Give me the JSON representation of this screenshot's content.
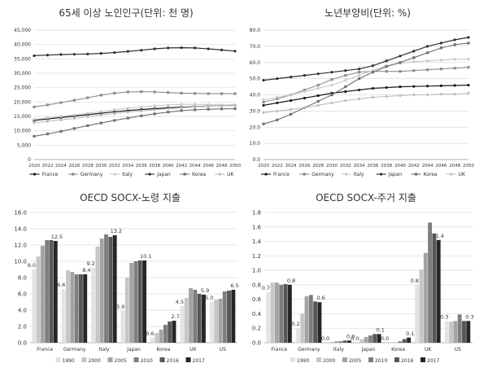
{
  "colors": {
    "France": "#1a1a1a",
    "Germany": "#8c8c8c",
    "Italy": "#c8c8c8",
    "Japan": "#2e2e2e",
    "Korea": "#707070",
    "UK": "#bdbdbd",
    "bar1990": "#e3e3e3",
    "bar2000": "#c6c6c6",
    "bar2005": "#a3a3a3",
    "bar2010": "#7e7e7e",
    "bar2016": "#575757",
    "bar2017": "#262626",
    "grid": "#dcdcdc",
    "axis": "#9a9a9a",
    "text": "#333333"
  },
  "chart_data": [
    {
      "id": "elderly",
      "type": "line",
      "title": "65세 이상 노인인구(단위: 천 명)",
      "ylim": [
        0,
        45000
      ],
      "yticks": [
        "0",
        "5,000",
        "10,000",
        "15,000",
        "20,000",
        "25,000",
        "30,000",
        "35,000",
        "40,000",
        "45,000"
      ],
      "x": [
        "2020",
        "2022",
        "2024",
        "2026",
        "2028",
        "2030",
        "2032",
        "2034",
        "2036",
        "2038",
        "2040",
        "2042",
        "2044",
        "2046",
        "2048",
        "2050"
      ],
      "series": [
        {
          "name": "France",
          "values": [
            13600,
            14100,
            14600,
            15100,
            15600,
            16100,
            16600,
            17000,
            17400,
            17700,
            18000,
            18200,
            18400,
            18600,
            18800,
            18900
          ]
        },
        {
          "name": "Germany",
          "values": [
            18300,
            19000,
            19800,
            20600,
            21500,
            22400,
            23100,
            23500,
            23600,
            23500,
            23300,
            23100,
            23000,
            22900,
            22900,
            22900
          ]
        },
        {
          "name": "Italy",
          "values": [
            14000,
            14500,
            15000,
            15500,
            16100,
            16700,
            17300,
            17800,
            18300,
            18700,
            19000,
            19200,
            19200,
            19100,
            19000,
            19000
          ]
        },
        {
          "name": "Japan",
          "values": [
            36100,
            36300,
            36500,
            36600,
            36700,
            36900,
            37200,
            37600,
            38000,
            38500,
            38800,
            38900,
            38800,
            38500,
            38100,
            37700
          ]
        },
        {
          "name": "Korea",
          "values": [
            8100,
            8900,
            9800,
            10800,
            11800,
            12700,
            13600,
            14400,
            15200,
            15900,
            16500,
            17000,
            17300,
            17500,
            17600,
            17700
          ]
        },
        {
          "name": "UK",
          "values": [
            12800,
            13300,
            13800,
            14300,
            14900,
            15500,
            16000,
            16500,
            16900,
            17300,
            17700,
            18000,
            18300,
            18600,
            18800,
            19000
          ]
        }
      ]
    },
    {
      "id": "dependency",
      "type": "line",
      "title": "노년부양비(단위: %)",
      "ylim": [
        0,
        80
      ],
      "yticks": [
        "0.0",
        "10.0",
        "20.0",
        "30.0",
        "40.0",
        "50.0",
        "60.0",
        "70.0",
        "80.0"
      ],
      "x": [
        "2020",
        "2022",
        "2024",
        "2026",
        "2028",
        "2030",
        "2032",
        "2034",
        "2036",
        "2038",
        "2040",
        "2042",
        "2044",
        "2046",
        "2048",
        "2050"
      ],
      "series": [
        {
          "name": "France",
          "values": [
            33.5,
            35,
            36.5,
            38,
            39.5,
            41,
            42,
            43,
            44,
            44.5,
            45,
            45.2,
            45.4,
            45.6,
            45.8,
            46
          ]
        },
        {
          "name": "Germany",
          "values": [
            35.5,
            37.5,
            40,
            43,
            46,
            49.5,
            52,
            54,
            54.5,
            54.5,
            54.5,
            55,
            55.5,
            56,
            56.5,
            57
          ]
        },
        {
          "name": "Italy",
          "values": [
            37,
            38.5,
            40,
            42,
            44,
            46,
            49,
            52,
            55,
            58,
            59.5,
            60.5,
            61,
            61.5,
            62,
            62
          ]
        },
        {
          "name": "Japan",
          "values": [
            49,
            50,
            51,
            52,
            53,
            54,
            55,
            56,
            58,
            61,
            64,
            67,
            70,
            72,
            74,
            75.5
          ]
        },
        {
          "name": "Korea",
          "values": [
            22,
            24.5,
            28,
            32,
            36,
            40,
            45,
            50,
            54,
            57.5,
            60,
            63,
            66,
            69,
            71,
            72
          ]
        },
        {
          "name": "UK",
          "values": [
            29,
            30,
            31,
            32,
            33.5,
            35,
            36.5,
            37.5,
            38.5,
            39,
            39.5,
            40,
            40,
            40.5,
            40.5,
            41
          ]
        }
      ]
    },
    {
      "id": "socx_old",
      "type": "bar",
      "title": "OECD SOCX-노령 지출",
      "ylim": [
        0,
        16
      ],
      "yticks": [
        "0.0",
        "2.0",
        "4.0",
        "6.0",
        "8.0",
        "10.0",
        "12.0",
        "14.0",
        "16.0"
      ],
      "categories": [
        "France",
        "Germany",
        "Italy",
        "Japan",
        "Korea",
        "UK",
        "US"
      ],
      "series": [
        {
          "name": "1990",
          "values": [
            9.0,
            6.6,
            9.2,
            3.9,
            0.6,
            4.5,
            5.0
          ]
        },
        {
          "name": "2000",
          "values": [
            10.6,
            8.9,
            11.8,
            8.0,
            1.2,
            5.5,
            5.3
          ]
        },
        {
          "name": "2005",
          "values": [
            11.9,
            8.7,
            12.8,
            9.8,
            1.6,
            6.7,
            5.4
          ]
        },
        {
          "name": "2010",
          "values": [
            12.6,
            8.4,
            13.3,
            10.0,
            2.2,
            6.5,
            6.3
          ]
        },
        {
          "name": "2016",
          "values": [
            12.6,
            8.4,
            13.0,
            10.1,
            2.6,
            6.0,
            6.4
          ]
        },
        {
          "name": "2017",
          "values": [
            12.5,
            8.4,
            13.2,
            10.1,
            2.7,
            5.9,
            6.5
          ]
        }
      ],
      "labels": [
        [
          "9.0",
          "12.5"
        ],
        [
          "6.6",
          "8.4"
        ],
        [
          "9.2",
          "13.2"
        ],
        [
          "3.9",
          "10.1"
        ],
        [
          "0.6",
          "2.7"
        ],
        [
          "4.5",
          "5.9"
        ],
        [
          "5.0",
          "6.5"
        ]
      ]
    },
    {
      "id": "socx_housing",
      "type": "bar",
      "title": "OECD SOCX-주거 지출",
      "ylim": [
        0,
        1.8
      ],
      "yticks": [
        "0.0",
        "0.2",
        "0.4",
        "0.6",
        "0.8",
        "1.0",
        "1.2",
        "1.4",
        "1.6",
        "1.8"
      ],
      "categories": [
        "France",
        "Germany",
        "Italy",
        "Japan",
        "Korea",
        "UK",
        "US"
      ],
      "series": [
        {
          "name": "1990",
          "values": [
            0.7,
            0.2,
            0.0,
            0.0,
            0.0,
            0.8,
            0.3
          ]
        },
        {
          "name": "2000",
          "values": [
            0.83,
            0.4,
            0.01,
            0.05,
            0.0,
            1.01,
            0.29
          ]
        },
        {
          "name": "2005",
          "values": [
            0.83,
            0.64,
            0.02,
            0.08,
            0.0,
            1.24,
            0.3
          ]
        },
        {
          "name": "2010",
          "values": [
            0.8,
            0.66,
            0.02,
            0.1,
            0.02,
            1.66,
            0.39
          ]
        },
        {
          "name": "2016",
          "values": [
            0.81,
            0.57,
            0.03,
            0.12,
            0.05,
            1.51,
            0.3
          ]
        },
        {
          "name": "2017",
          "values": [
            0.8,
            0.56,
            0.03,
            0.12,
            0.07,
            1.42,
            0.3
          ]
        }
      ],
      "labels": [
        [
          "0.7",
          "0.8"
        ],
        [
          "0.2",
          "0.6"
        ],
        [
          "0.0",
          "0.0"
        ],
        [
          "0.0",
          "0.1"
        ],
        [
          "0.0",
          "0.1"
        ],
        [
          "0.8",
          "1.4"
        ],
        [
          "0.3",
          "0.3"
        ]
      ]
    }
  ]
}
